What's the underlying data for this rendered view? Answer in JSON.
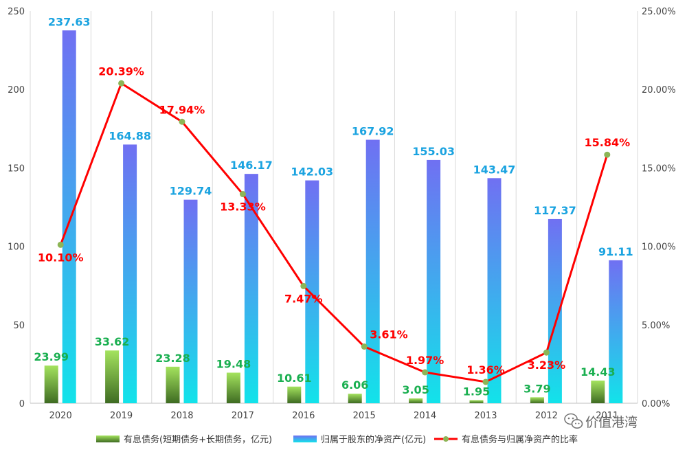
{
  "chart_data": {
    "type": "bar",
    "categories": [
      "2020",
      "2019",
      "2018",
      "2017",
      "2016",
      "2015",
      "2014",
      "2013",
      "2012",
      "2011"
    ],
    "series": [
      {
        "name": "有息债务(短期债务+长期债务，亿元)",
        "type": "bar",
        "axis": "left",
        "values": [
          23.99,
          33.62,
          23.28,
          19.48,
          10.61,
          6.06,
          3.05,
          1.95,
          3.79,
          14.43
        ],
        "labels": [
          "23.99",
          "33.62",
          "23.28",
          "19.48",
          "10.61",
          "6.06",
          "3.05",
          "1.95",
          "3.79",
          "14.43"
        ],
        "color": "#8fd14f",
        "label_color": "#1aaf50"
      },
      {
        "name": "归属于股东的净资产(亿元)",
        "type": "bar",
        "axis": "left",
        "values": [
          237.63,
          164.88,
          129.74,
          146.17,
          142.03,
          167.92,
          155.03,
          143.47,
          117.37,
          91.11
        ],
        "labels": [
          "237.63",
          "164.88",
          "129.74",
          "146.17",
          "142.03",
          "167.92",
          "155.03",
          "143.47",
          "117.37",
          "91.11"
        ],
        "color": "#4fb8f5",
        "label_color": "#1aa3e0"
      },
      {
        "name": "有息债务与归属净资产的比率",
        "type": "line",
        "axis": "right",
        "values": [
          10.1,
          20.39,
          17.94,
          13.33,
          7.47,
          3.61,
          1.97,
          1.36,
          3.23,
          15.84
        ],
        "labels": [
          "10.10%",
          "20.39%",
          "17.94%",
          "13.33%",
          "7.47%",
          "3.61%",
          "1.97%",
          "1.36%",
          "3.23%",
          "15.84%"
        ],
        "color": "#ff0000",
        "marker_color": "#8db556"
      }
    ],
    "y_left": {
      "min": 0,
      "max": 250,
      "ticks": [
        "0",
        "50",
        "100",
        "150",
        "200",
        "250"
      ]
    },
    "y_right": {
      "min": 0,
      "max": 25,
      "ticks": [
        "0.00%",
        "5.00%",
        "10.00%",
        "15.00%",
        "20.00%",
        "25.00%"
      ]
    },
    "grid": "vertical",
    "legend": "bottom"
  },
  "watermark": {
    "icon": "wechat-icon",
    "text": "价值港湾"
  }
}
